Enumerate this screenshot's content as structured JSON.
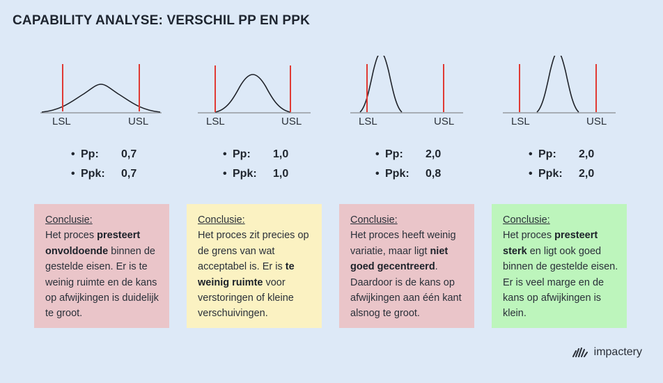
{
  "title": "CAPABILITY ANALYSE: VERSCHIL PP EN PPK",
  "labels": {
    "lsl": "LSL",
    "usl": "USL",
    "pp": "Pp:",
    "ppk": "Ppk:",
    "conclusie": "Conclusie:"
  },
  "colors": {
    "limit_line": "#e03a34",
    "curve": "#1f2229",
    "axis": "#a7adb5"
  },
  "scenarios": [
    {
      "pp": "0,7",
      "ppk": "0,7",
      "box_color": "#eac5c9",
      "text_parts": [
        {
          "t": "Het proces ",
          "b": false
        },
        {
          "t": "presteert onvoldoende",
          "b": true
        },
        {
          "t": " binnen de gestelde eisen. Er is te weinig ruimte en de kans op afwijkingen is duidelijk te groot.",
          "b": false
        }
      ]
    },
    {
      "pp": "1,0",
      "ppk": "1,0",
      "box_color": "#fbf2c2",
      "text_parts": [
        {
          "t": "Het proces zit precies op de grens van wat acceptabel is. Er is ",
          "b": false
        },
        {
          "t": "te weinig ruimte",
          "b": true
        },
        {
          "t": " voor verstoringen of kleine verschuivingen.",
          "b": false
        }
      ]
    },
    {
      "pp": "2,0",
      "ppk": "0,8",
      "box_color": "#eac5c9",
      "text_parts": [
        {
          "t": "Het proces heeft weinig variatie, maar ligt ",
          "b": false
        },
        {
          "t": "niet goed gecentreerd",
          "b": true
        },
        {
          "t": ". Daardoor is de kans op afwijkingen aan één kant alsnog te groot.",
          "b": false
        }
      ]
    },
    {
      "pp": "2,0",
      "ppk": "2,0",
      "box_color": "#bdf5bc",
      "text_parts": [
        {
          "t": "Het proces ",
          "b": false
        },
        {
          "t": "presteert sterk",
          "b": true
        },
        {
          "t": " en ligt ook goed binnen de gestelde eisen. Er is veel marge en de kans op afwijkingen is klein.",
          "b": false
        }
      ]
    }
  ],
  "brand": {
    "name": "impactery",
    "icon": "fan-logo-icon"
  }
}
